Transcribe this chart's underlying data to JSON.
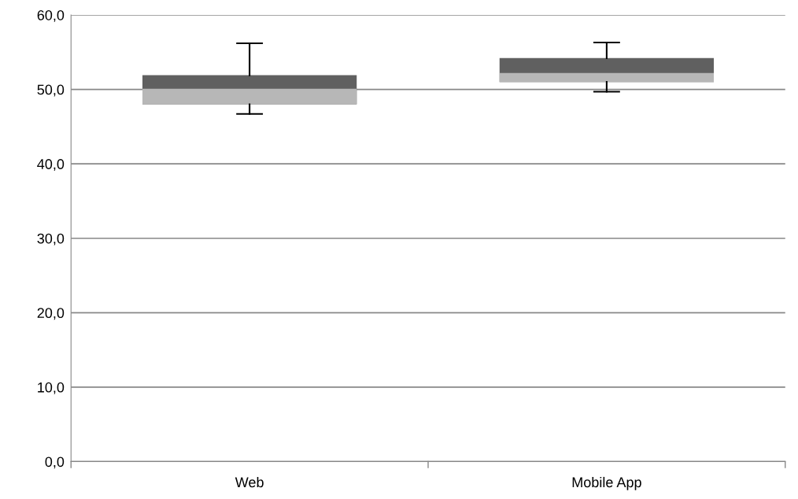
{
  "chart_data": {
    "type": "box",
    "categories": [
      "Web",
      "Mobile App"
    ],
    "boxes": [
      {
        "low": 46.7,
        "q1": 48.0,
        "median": 50.1,
        "q3": 51.9,
        "high": 56.2
      },
      {
        "low": 49.7,
        "q1": 51.0,
        "median": 52.2,
        "q3": 54.2,
        "high": 56.3
      }
    ],
    "colors": [
      "#606060",
      "#606060"
    ],
    "ylim": [
      0,
      60
    ],
    "yticks": [
      {
        "value": 0,
        "label": "0,0"
      },
      {
        "value": 10,
        "label": "10,0"
      },
      {
        "value": 20,
        "label": "20,0"
      },
      {
        "value": 30,
        "label": "30,0"
      },
      {
        "value": 40,
        "label": "40,0"
      },
      {
        "value": 50,
        "label": "50,0"
      },
      {
        "value": 60,
        "label": "60,0"
      }
    ],
    "grid": "y",
    "legend": false
  }
}
